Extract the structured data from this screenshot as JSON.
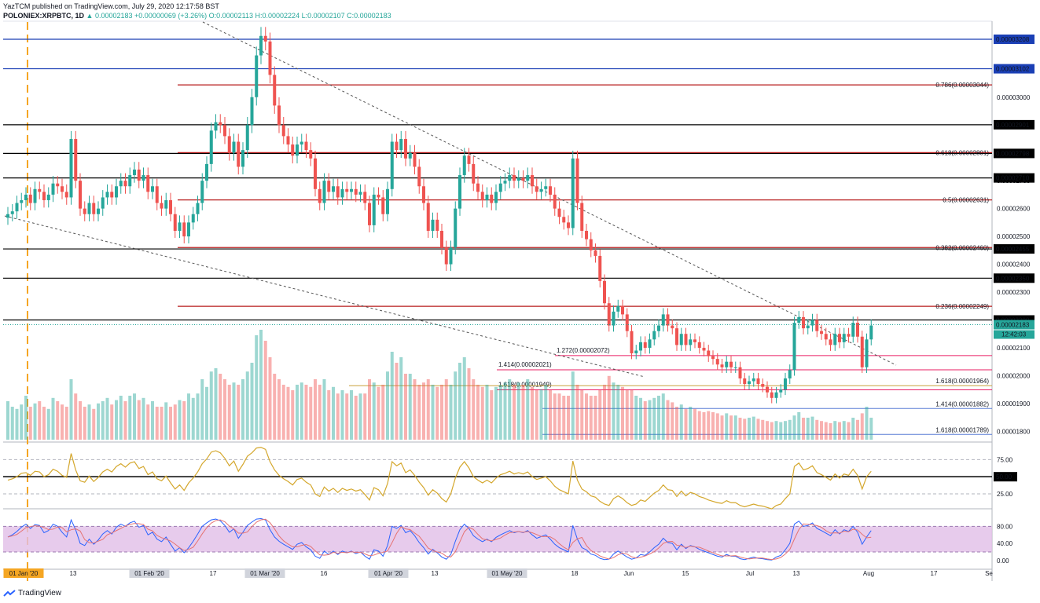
{
  "header": {
    "line1": "YazTCM published on TradingView.com, July 29, 2020 12:17:58 BST",
    "symbol": "POLONIEX:XRPBTC, 1D",
    "price": "0.00002183",
    "change": "+0.00000069 (+3.26%)",
    "ohlc": "O:0.00002113 H:0.00002224 L:0.00002107 C:0.00002183"
  },
  "footer": {
    "brand": "TradingView"
  },
  "colors": {
    "up": "#26a69a",
    "down": "#ef5350",
    "fib": "#b71c1c",
    "ext_pink": "#e91e63",
    "ext_gold": "#c8a03c",
    "ext_blue": "#5b7fd6",
    "rsi": "#d4a72c",
    "stoch_k": "#2962ff",
    "stoch_d": "#e57373",
    "stoch_band": "#e1bee7",
    "last_price_bg": "#26a69a",
    "blue_level": "#1a3fb5"
  },
  "chart_data": {
    "type": "candlestick",
    "title": "",
    "price_axis_ticks": [
      "0.00003000",
      "0.00002900",
      "0.00002800",
      "0.00002700",
      "0.00002600",
      "0.00002500",
      "0.00002400",
      "0.00002300",
      "0.00002200",
      "0.00002100",
      "0.00002000",
      "0.00001900",
      "0.00001800"
    ],
    "ylim": [
      1.77e-05,
      3.27e-05
    ],
    "x_labels": [
      "01 Jan '20",
      "13",
      "01 Feb '20",
      "17",
      "01 Mar '20",
      "16",
      "01 Apr '20",
      "13",
      "01 May '20",
      "18",
      "Jun",
      "15",
      "Jul",
      "13",
      "Aug",
      "17",
      "Se"
    ],
    "horizontal_levels": [
      {
        "value": 3.208e-05,
        "label": "0.00003208",
        "color": "#1a3fb5",
        "boxed": true
      },
      {
        "value": 3.102e-05,
        "label": "0.00003102",
        "color": "#1a3fb5",
        "boxed": true
      },
      {
        "value": 2.901e-05,
        "label": "0.00002901",
        "color": "#000000",
        "boxed": true
      },
      {
        "value": 2.798e-05,
        "label": "0.00002798",
        "color": "#000000",
        "boxed": true
      },
      {
        "value": 2.71e-05,
        "label": "0.00002710",
        "color": "#000000",
        "boxed": true
      },
      {
        "value": 2.455e-05,
        "label": "0.00002455",
        "color": "#000000",
        "boxed": true
      },
      {
        "value": 2.35e-05,
        "label": "0.00002350",
        "color": "#000000",
        "boxed": true
      },
      {
        "value": 2.2e-05,
        "label": "0.00002200",
        "color": "#000000",
        "boxed": true
      }
    ],
    "fib_retracements": [
      {
        "value": 3.044e-05,
        "label": "0.786(0.00003044)"
      },
      {
        "value": 2.801e-05,
        "label": "0.618(0.00002801)"
      },
      {
        "value": 2.631e-05,
        "label": "0.5(0.00002631)"
      },
      {
        "value": 2.46e-05,
        "label": "0.382(0.00002460)"
      },
      {
        "value": 2.249e-05,
        "label": "0.236(0.00002249)"
      }
    ],
    "fib_extensions": [
      {
        "value": 2.072e-05,
        "label": "1.272(0.00002072)",
        "color": "#e91e63"
      },
      {
        "value": 2.021e-05,
        "label": "1.414(0.00002021)",
        "color": "#e91e63"
      },
      {
        "value": 1.949e-05,
        "label": "1.618(0.00001949)",
        "color": "#e91e63"
      },
      {
        "value": 1.964e-05,
        "label": "1.618(0.00001964)",
        "color": "#c8a03c"
      },
      {
        "value": 1.882e-05,
        "label": "1.414(0.00001882)",
        "color": "#5b7fd6"
      },
      {
        "value": 1.789e-05,
        "label": "1.618(0.00001789)",
        "color": "#5b7fd6"
      }
    ],
    "last_price": {
      "value": 2.183e-05,
      "label": "0.00002183",
      "countdown": "12:42:03"
    },
    "rsi": {
      "ticks": [
        "75.00",
        "50.00",
        "25.00"
      ],
      "mid_label": "50.00",
      "ylim": [
        10,
        95
      ]
    },
    "stoch": {
      "ticks": [
        "80.00",
        "40.00",
        "0.00"
      ],
      "band": [
        20,
        80
      ],
      "ylim": [
        -15,
        110
      ]
    },
    "candles_close": [
      2.58e-05,
      2.59e-05,
      2.62e-05,
      2.63e-05,
      2.65e-05,
      2.62e-05,
      2.67e-05,
      2.66e-05,
      2.63e-05,
      2.65e-05,
      2.69e-05,
      2.68e-05,
      2.66e-05,
      2.64e-05,
      2.85e-05,
      2.7e-05,
      2.6e-05,
      2.58e-05,
      2.62e-05,
      2.58e-05,
      2.6e-05,
      2.64e-05,
      2.66e-05,
      2.64e-05,
      2.68e-05,
      2.7e-05,
      2.68e-05,
      2.72e-05,
      2.74e-05,
      2.7e-05,
      2.72e-05,
      2.66e-05,
      2.68e-05,
      2.62e-05,
      2.6e-05,
      2.63e-05,
      2.58e-05,
      2.52e-05,
      2.55e-05,
      2.5e-05,
      2.55e-05,
      2.58e-05,
      2.62e-05,
      2.7e-05,
      2.76e-05,
      2.88e-05,
      2.91e-05,
      2.9e-05,
      2.86e-05,
      2.8e-05,
      2.84e-05,
      2.75e-05,
      2.81e-05,
      2.9e-05,
      3e-05,
      3.15e-05,
      3.22e-05,
      3.2e-05,
      3.08e-05,
      2.97e-05,
      2.9e-05,
      2.86e-05,
      2.83e-05,
      2.79e-05,
      2.83e-05,
      2.84e-05,
      2.81e-05,
      2.78e-05,
      2.67e-05,
      2.62e-05,
      2.7e-05,
      2.66e-05,
      2.68e-05,
      2.64e-05,
      2.67e-05,
      2.66e-05,
      2.67e-05,
      2.65e-05,
      2.66e-05,
      2.62e-05,
      2.54e-05,
      2.65e-05,
      2.64e-05,
      2.58e-05,
      2.67e-05,
      2.84e-05,
      2.81e-05,
      2.85e-05,
      2.78e-05,
      2.8e-05,
      2.75e-05,
      2.68e-05,
      2.62e-05,
      2.52e-05,
      2.56e-05,
      2.52e-05,
      2.46e-05,
      2.4e-05,
      2.46e-05,
      2.6e-05,
      2.72e-05,
      2.79e-05,
      2.76e-05,
      2.69e-05,
      2.66e-05,
      2.63e-05,
      2.65e-05,
      2.62e-05,
      2.66e-05,
      2.69e-05,
      2.7e-05,
      2.72e-05,
      2.7e-05,
      2.71e-05,
      2.7e-05,
      2.72e-05,
      2.68e-05,
      2.66e-05,
      2.67e-05,
      2.68e-05,
      2.65e-05,
      2.6e-05,
      2.57e-05,
      2.55e-05,
      2.53e-05,
      2.78e-05,
      2.62e-05,
      2.52e-05,
      2.49e-05,
      2.45e-05,
      2.43e-05,
      2.34e-05,
      2.26e-05,
      2.18e-05,
      2.23e-05,
      2.25e-05,
      2.22e-05,
      2.16e-05,
      2.08e-05,
      2.09e-05,
      2.12e-05,
      2.1e-05,
      2.13e-05,
      2.16e-05,
      2.18e-05,
      2.22e-05,
      2.18e-05,
      2.17e-05,
      2.11e-05,
      2.15e-05,
      2.11e-05,
      2.13e-05,
      2.12e-05,
      2.1e-05,
      2.09e-05,
      2.07e-05,
      2.06e-05,
      2.04e-05,
      2.03e-05,
      2.05e-05,
      2.03e-05,
      2.03e-05,
      1.99e-05,
      1.97e-05,
      1.98e-05,
      1.99e-05,
      1.97e-05,
      1.96e-05,
      1.94e-05,
      1.92e-05,
      1.94e-05,
      1.95e-05,
      1.99e-05,
      2.02e-05,
      2.19e-05,
      2.21e-05,
      2.17e-05,
      2.18e-05,
      2.2e-05,
      2.16e-05,
      2.15e-05,
      2.13e-05,
      2.11e-05,
      2.15e-05,
      2.12e-05,
      2.15e-05,
      2.14e-05,
      2.19e-05,
      2.14e-05,
      2.03e-05,
      2.13e-05,
      2.18e-05
    ],
    "rsi_values": [
      45,
      47,
      50,
      55,
      56,
      52,
      58,
      57,
      50,
      53,
      61,
      58,
      52,
      49,
      84,
      60,
      44,
      42,
      51,
      43,
      49,
      57,
      61,
      57,
      65,
      69,
      64,
      70,
      72,
      62,
      65,
      53,
      57,
      47,
      44,
      51,
      41,
      32,
      38,
      30,
      41,
      48,
      57,
      69,
      76,
      86,
      88,
      85,
      77,
      66,
      73,
      58,
      68,
      80,
      85,
      92,
      93,
      90,
      72,
      60,
      52,
      47,
      43,
      38,
      46,
      48,
      42,
      38,
      25,
      21,
      35,
      29,
      33,
      27,
      33,
      30,
      32,
      29,
      31,
      24,
      16,
      34,
      31,
      22,
      40,
      72,
      66,
      70,
      56,
      60,
      52,
      42,
      34,
      23,
      31,
      26,
      18,
      13,
      25,
      48,
      64,
      72,
      63,
      50,
      45,
      41,
      45,
      41,
      48,
      53,
      55,
      58,
      54,
      56,
      54,
      57,
      50,
      46,
      48,
      50,
      44,
      36,
      31,
      28,
      25,
      73,
      45,
      32,
      28,
      22,
      20,
      14,
      10,
      8,
      18,
      22,
      18,
      12,
      8,
      10,
      16,
      14,
      20,
      26,
      30,
      38,
      31,
      30,
      21,
      29,
      22,
      27,
      25,
      21,
      19,
      16,
      14,
      12,
      11,
      15,
      12,
      12,
      8,
      6,
      8,
      10,
      8,
      7,
      5,
      3,
      8,
      10,
      18,
      25,
      65,
      70,
      60,
      62,
      66,
      56,
      53,
      49,
      45,
      54,
      48,
      54,
      52,
      61,
      52,
      32,
      50,
      58
    ],
    "stoch_k": [
      55,
      60,
      68,
      78,
      85,
      75,
      84,
      82,
      65,
      70,
      85,
      80,
      66,
      55,
      95,
      72,
      40,
      35,
      50,
      38,
      48,
      62,
      70,
      62,
      78,
      85,
      80,
      88,
      92,
      78,
      82,
      60,
      66,
      50,
      44,
      55,
      38,
      22,
      30,
      18,
      30,
      45,
      62,
      80,
      88,
      95,
      97,
      93,
      82,
      66,
      74,
      52,
      66,
      82,
      90,
      97,
      98,
      95,
      72,
      55,
      45,
      38,
      32,
      26,
      38,
      42,
      32,
      25,
      10,
      5,
      22,
      14,
      22,
      14,
      22,
      18,
      22,
      16,
      20,
      10,
      3,
      25,
      22,
      10,
      35,
      80,
      75,
      82,
      65,
      70,
      58,
      42,
      30,
      15,
      26,
      18,
      8,
      3,
      14,
      45,
      72,
      85,
      75,
      58,
      50,
      44,
      50,
      44,
      54,
      60,
      65,
      70,
      65,
      68,
      65,
      70,
      60,
      52,
      56,
      60,
      50,
      38,
      30,
      25,
      20,
      82,
      50,
      30,
      25,
      15,
      12,
      5,
      2,
      3,
      15,
      22,
      15,
      8,
      3,
      6,
      14,
      12,
      20,
      30,
      38,
      52,
      42,
      40,
      25,
      38,
      28,
      35,
      32,
      26,
      22,
      18,
      14,
      10,
      8,
      14,
      10,
      10,
      4,
      2,
      5,
      8,
      5,
      4,
      2,
      1,
      8,
      12,
      25,
      40,
      85,
      92,
      80,
      82,
      88,
      75,
      70,
      64,
      58,
      72,
      62,
      72,
      68,
      80,
      66,
      38,
      55,
      70
    ],
    "volumes": [
      0.35,
      0.3,
      0.28,
      0.32,
      0.4,
      0.3,
      0.33,
      0.35,
      0.3,
      0.28,
      0.38,
      0.35,
      0.32,
      0.3,
      0.55,
      0.42,
      0.35,
      0.3,
      0.32,
      0.28,
      0.33,
      0.35,
      0.38,
      0.32,
      0.36,
      0.4,
      0.35,
      0.4,
      0.42,
      0.36,
      0.38,
      0.32,
      0.35,
      0.3,
      0.3,
      0.34,
      0.3,
      0.32,
      0.36,
      0.35,
      0.42,
      0.38,
      0.42,
      0.55,
      0.48,
      0.62,
      0.65,
      0.6,
      0.55,
      0.5,
      0.52,
      0.5,
      0.55,
      0.62,
      0.7,
      0.95,
      1.0,
      0.9,
      0.75,
      0.6,
      0.55,
      0.5,
      0.48,
      0.45,
      0.5,
      0.52,
      0.5,
      0.48,
      0.55,
      0.5,
      0.55,
      0.45,
      0.48,
      0.42,
      0.45,
      0.42,
      0.45,
      0.4,
      0.42,
      0.42,
      0.55,
      0.52,
      0.48,
      0.5,
      0.62,
      0.8,
      0.7,
      0.75,
      0.6,
      0.6,
      0.55,
      0.5,
      0.52,
      0.55,
      0.5,
      0.48,
      0.5,
      0.55,
      0.5,
      0.62,
      0.7,
      0.75,
      0.65,
      0.55,
      0.5,
      0.48,
      0.5,
      0.45,
      0.48,
      0.5,
      0.52,
      0.55,
      0.5,
      0.52,
      0.5,
      0.55,
      0.48,
      0.45,
      0.46,
      0.5,
      0.45,
      0.42,
      0.42,
      0.4,
      0.4,
      0.62,
      0.5,
      0.45,
      0.42,
      0.4,
      0.4,
      0.45,
      0.5,
      0.58,
      0.52,
      0.5,
      0.48,
      0.45,
      0.45,
      0.4,
      0.38,
      0.35,
      0.36,
      0.38,
      0.4,
      0.42,
      0.36,
      0.34,
      0.3,
      0.32,
      0.28,
      0.3,
      0.28,
      0.26,
      0.25,
      0.26,
      0.25,
      0.24,
      0.22,
      0.24,
      0.22,
      0.22,
      0.2,
      0.19,
      0.2,
      0.21,
      0.19,
      0.18,
      0.17,
      0.16,
      0.17,
      0.16,
      0.17,
      0.18,
      0.22,
      0.25,
      0.2,
      0.2,
      0.21,
      0.18,
      0.17,
      0.16,
      0.15,
      0.17,
      0.16,
      0.17,
      0.16,
      0.2,
      0.18,
      0.24,
      0.3,
      0.2
    ]
  }
}
